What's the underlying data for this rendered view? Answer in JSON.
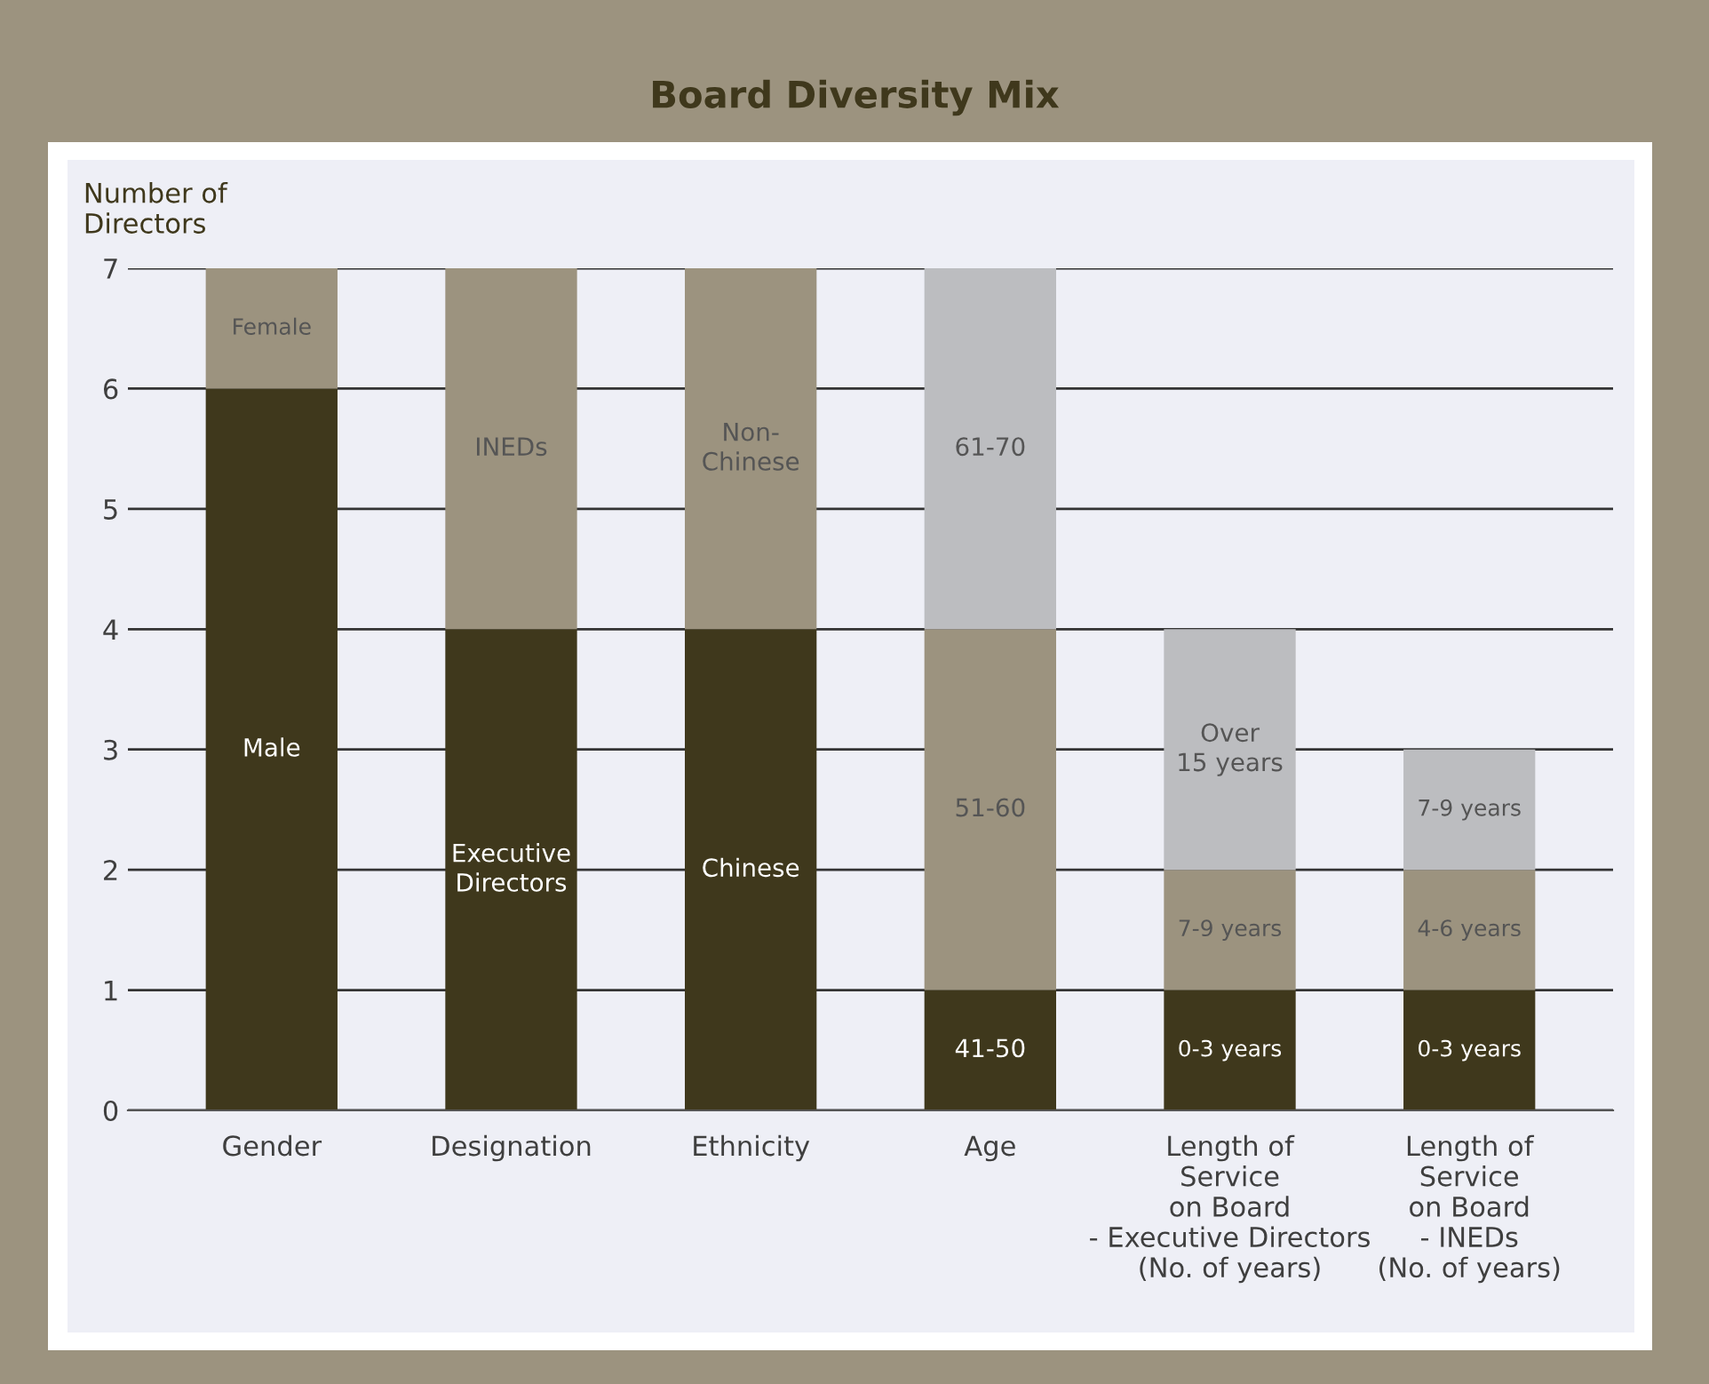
{
  "chart_data": {
    "type": "bar",
    "stacked": true,
    "title": "Board Diversity Mix",
    "ylabel": "Number of\nDirectors",
    "categories": [
      "Gender",
      "Designation",
      "Ethnicity",
      "Age",
      "Length of\nService\non Board\n- Executive Directors\n(No. of years)",
      "Length of\nService\non Board\n- INEDs\n(No. of years)"
    ],
    "series": [
      {
        "color": "#3f381c",
        "values": [
          6,
          4,
          4,
          1,
          1,
          1
        ],
        "value_labels": [
          "Male",
          "Executive\nDirectors",
          "Chinese",
          "41-50",
          "0-3 years",
          "0-3 years"
        ]
      },
      {
        "color": "#9c937f",
        "values": [
          1,
          3,
          3,
          3,
          1,
          1
        ],
        "value_labels": [
          "Female",
          "INEDs",
          "Non-\nChinese",
          "51-60",
          "7-9 years",
          "4-6 years"
        ]
      },
      {
        "color": "#bcbdc0",
        "values": [
          0,
          0,
          0,
          3,
          2,
          1
        ],
        "value_labels": [
          null,
          null,
          null,
          "61-70",
          "Over\n15 years",
          "7-9 years"
        ]
      }
    ],
    "ylim": [
      0,
      7
    ],
    "yticks": [
      0,
      1,
      2,
      3,
      4,
      5,
      6,
      7
    ],
    "grid": "y"
  }
}
